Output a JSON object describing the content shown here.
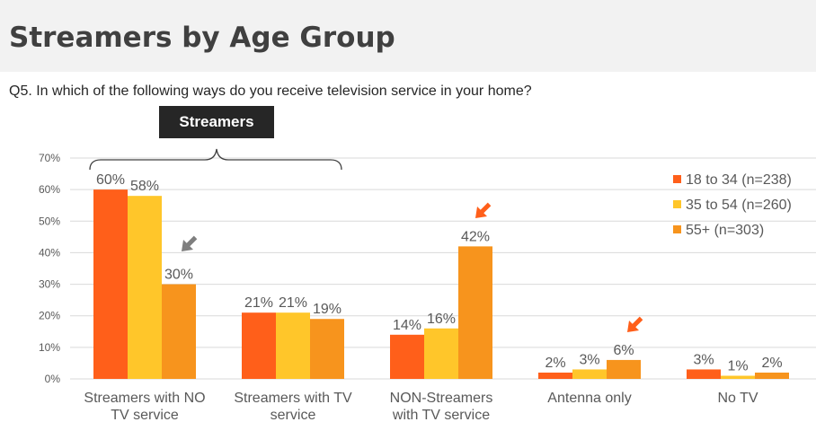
{
  "header": {
    "title": "Streamers by Age Group",
    "question": "Q5. In which of the following ways do you receive television service in your home?",
    "group_label": "Streamers"
  },
  "colors": {
    "series": [
      "#ff5f1a",
      "#ffc62a",
      "#f7941d"
    ],
    "arrow_gray": "#7f7f7f",
    "arrow_orange": "#ff5f1a",
    "grid": "#d9d9d9",
    "text": "#595959"
  },
  "chart_data": {
    "type": "bar",
    "categories": [
      [
        "Streamers with NO",
        "TV service"
      ],
      [
        "Streamers with TV",
        "service"
      ],
      [
        "NON-Streamers",
        "with TV service"
      ],
      [
        "Antenna only"
      ],
      [
        "No TV"
      ]
    ],
    "series": [
      {
        "name": "18 to 34 (n=238)",
        "values": [
          60,
          21,
          14,
          2,
          3
        ],
        "labels": [
          "60%",
          "21%",
          "14%",
          "2%",
          "3%"
        ]
      },
      {
        "name": "35 to 54 (n=260)",
        "values": [
          58,
          21,
          16,
          3,
          1
        ],
        "labels": [
          "58%",
          "21%",
          "16%",
          "3%",
          "1%"
        ]
      },
      {
        "name": "55+ (n=303)",
        "values": [
          30,
          19,
          42,
          6,
          2
        ],
        "labels": [
          "30%",
          "19%",
          "42%",
          "6%",
          "2%"
        ]
      }
    ],
    "yticks": [
      "0%",
      "10%",
      "20%",
      "30%",
      "40%",
      "50%",
      "60%",
      "70%"
    ],
    "ylim": [
      0,
      70
    ],
    "grid": true,
    "legend": "top-right",
    "callout_arrows": [
      {
        "category_index": 0,
        "series_index": 2,
        "color": "gray"
      },
      {
        "category_index": 2,
        "series_index": 2,
        "color": "orange"
      },
      {
        "category_index": 3,
        "series_index": 2,
        "color": "orange"
      }
    ]
  }
}
